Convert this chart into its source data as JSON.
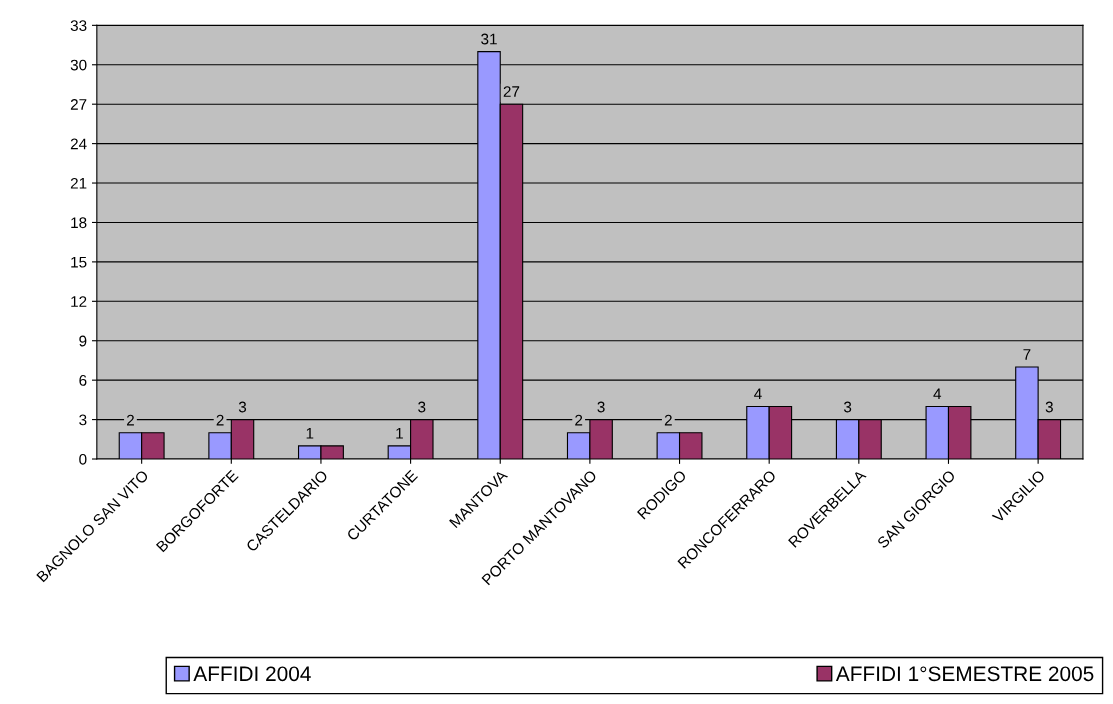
{
  "chart_data": {
    "type": "bar",
    "categories": [
      "BAGNOLO SAN VITO",
      "BORGOFORTE",
      "CASTELDARIO",
      "CURTATONE",
      "MANTOVA",
      "PORTO MANTOVANO",
      "RODIGO",
      "RONCOFERRARO",
      "ROVERBELLA",
      "SAN GIORGIO",
      "VIRGILIO"
    ],
    "series": [
      {
        "name": "AFFIDI 2004",
        "color": "#9999ff",
        "values": [
          2,
          2,
          1,
          1,
          31,
          2,
          2,
          4,
          3,
          4,
          7
        ],
        "value_labels": [
          "2",
          "2",
          "1",
          "1",
          "31",
          "2",
          "2",
          "4",
          "3",
          "4",
          "7"
        ]
      },
      {
        "name": "AFFIDI 1°SEMESTRE 2005",
        "color": "#993366",
        "values": [
          2,
          3,
          1,
          3,
          27,
          3,
          2,
          4,
          3,
          4,
          3
        ],
        "value_labels": [
          null,
          "3",
          null,
          "3",
          "27",
          "3",
          null,
          null,
          null,
          null,
          "3"
        ]
      }
    ],
    "ylim": [
      0,
      33
    ],
    "yticks": [
      0,
      3,
      6,
      9,
      12,
      15,
      18,
      21,
      24,
      27,
      30,
      33
    ],
    "grid": "y",
    "legend": "bottom"
  }
}
